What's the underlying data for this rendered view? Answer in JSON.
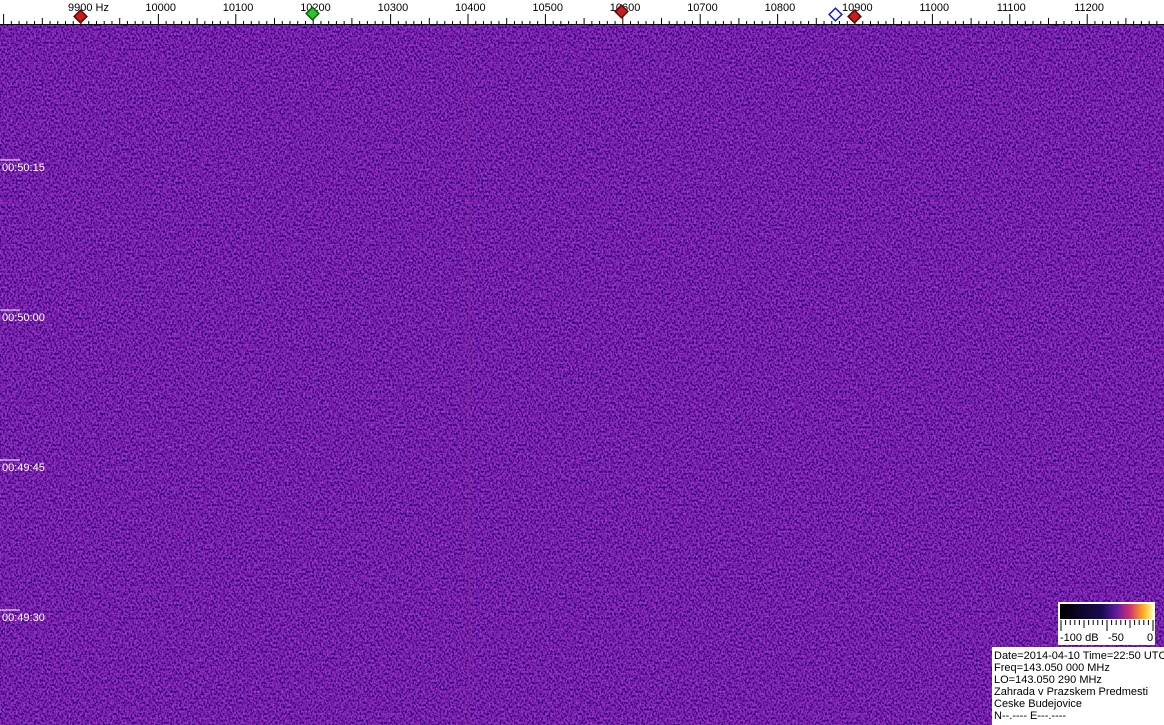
{
  "frequency_axis": {
    "ticks": [
      "9900 Hz",
      "10000",
      "10100",
      "10200",
      "10300",
      "10400",
      "10500",
      "10600",
      "10700",
      "10800",
      "10900",
      "11000",
      "11100",
      "11200"
    ]
  },
  "time_axis": {
    "labels": [
      "00:50:15",
      "00:50:00",
      "00:49:45",
      "00:49:30"
    ]
  },
  "color_scale": {
    "labels": [
      "-100 dB",
      "-50",
      "0"
    ]
  },
  "info": {
    "lines": [
      "Date=2014-04-10 Time=22:50 UTC",
      "Freq=143.050 000 MHz",
      "LO=143.050 290 MHz",
      "Zahrada v Prazskem Predmesti",
      "Ceske Budejovice",
      "N--.---- E---.----"
    ]
  }
}
